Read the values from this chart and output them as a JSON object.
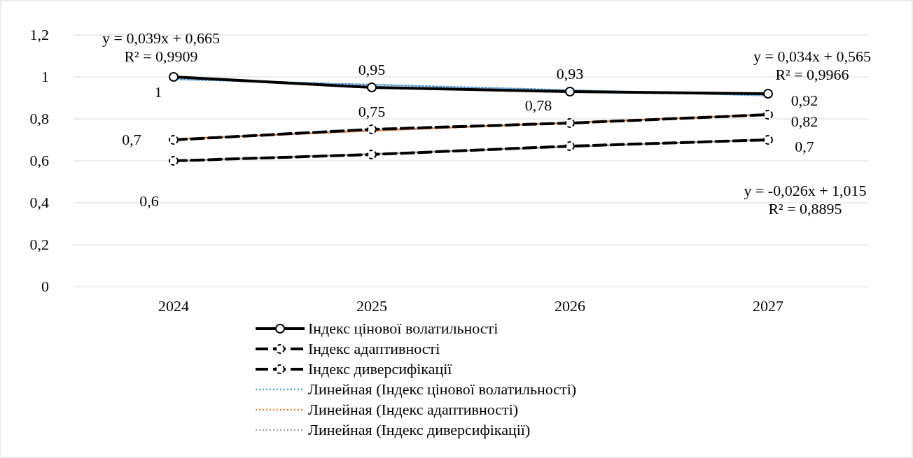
{
  "chart_data": {
    "type": "line",
    "categories": [
      "2024",
      "2025",
      "2026",
      "2027"
    ],
    "ylim": [
      0,
      1.2
    ],
    "yticks": [
      {
        "value": 0,
        "label": "0"
      },
      {
        "value": 0.2,
        "label": "0,2"
      },
      {
        "value": 0.4,
        "label": "0,4"
      },
      {
        "value": 0.6,
        "label": "0,6"
      },
      {
        "value": 0.8,
        "label": "0,8"
      },
      {
        "value": 1,
        "label": "1"
      },
      {
        "value": 1.2,
        "label": "1,2"
      }
    ],
    "grid": "y",
    "legend": "bottom",
    "series": [
      {
        "name": "Індекс цінової волатильності",
        "color": "#000000",
        "values": [
          1,
          0.95,
          0.93,
          0.92
        ],
        "marker": "circle",
        "line_style": "solid",
        "value_labels": [
          "1",
          "0,95",
          "0,93",
          "0,92"
        ]
      },
      {
        "name": "Індекс адаптивності",
        "color": "#000000",
        "values": [
          0.7,
          0.75,
          0.78,
          0.82
        ],
        "marker": "circle",
        "line_style": "dashed",
        "value_labels": [
          "0,7",
          "0,75",
          "0,78",
          "0,82"
        ]
      },
      {
        "name": "Індекс диверсифікації",
        "color": "#000000",
        "values": [
          0.6,
          0.63,
          0.67,
          0.7
        ],
        "marker": "circle",
        "line_style": "dashed",
        "value_labels": [
          "0,6",
          null,
          null,
          "0,7"
        ]
      },
      {
        "name": "Линейная (Індекс цінової волатильності)",
        "color": "#5b9bd5",
        "values": [
          0.989,
          0.963,
          0.937,
          0.911
        ],
        "marker": "none",
        "line_style": "dotted"
      },
      {
        "name": "Линейная (Індекс адаптивності)",
        "color": "#ed7d31",
        "values": [
          0.704,
          0.743,
          0.782,
          0.821
        ],
        "marker": "none",
        "line_style": "dotted"
      },
      {
        "name": "Линейная (Індекс диверсифікації)",
        "color": "#a5a5a5",
        "values": [
          0.599,
          0.633,
          0.667,
          0.701
        ],
        "marker": "none",
        "line_style": "dotted"
      }
    ],
    "annotations": [
      "y = 0,039x + 0,665\nR² = 0,9909",
      "y = 0,034x + 0,565\nR² = 0,9966",
      "y = -0,026x + 1,015\nR² = 0,8895"
    ]
  }
}
